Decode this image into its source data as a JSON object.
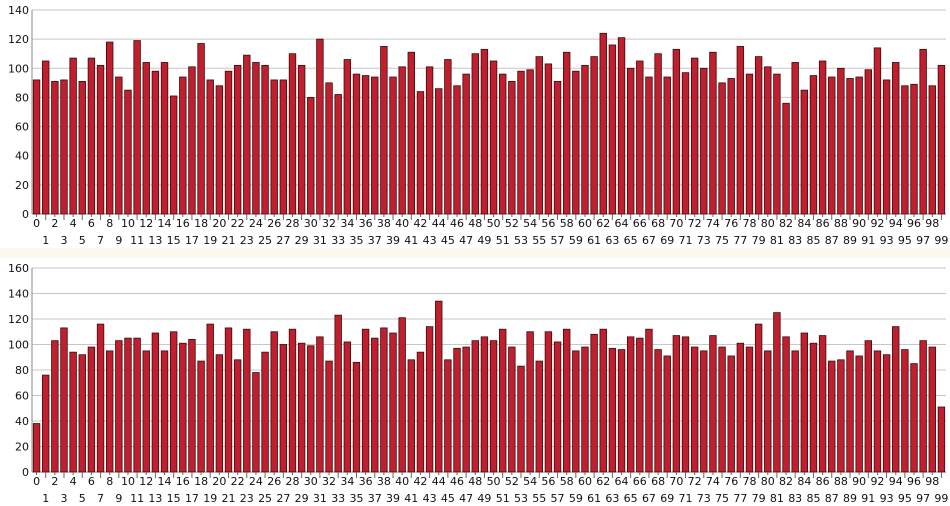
{
  "chart_data": [
    {
      "type": "bar",
      "title": "",
      "xlabel": "",
      "ylabel": "",
      "ylim": [
        0,
        140
      ],
      "yticks": [
        0,
        20,
        40,
        60,
        80,
        100,
        120,
        140
      ],
      "grid": true,
      "bar_color": "#c0202e",
      "bar_edge_color": "#3a0a0e",
      "categories": [
        "0",
        "1",
        "2",
        "3",
        "4",
        "5",
        "6",
        "7",
        "8",
        "9",
        "10",
        "11",
        "12",
        "13",
        "14",
        "15",
        "16",
        "17",
        "18",
        "19",
        "20",
        "21",
        "22",
        "23",
        "24",
        "25",
        "26",
        "27",
        "28",
        "29",
        "30",
        "31",
        "32",
        "33",
        "34",
        "35",
        "36",
        "37",
        "38",
        "39",
        "40",
        "41",
        "42",
        "43",
        "44",
        "45",
        "46",
        "47",
        "48",
        "49",
        "50",
        "51",
        "52",
        "53",
        "54",
        "55",
        "56",
        "57",
        "58",
        "59",
        "60",
        "61",
        "62",
        "63",
        "64",
        "65",
        "66",
        "67",
        "68",
        "69",
        "70",
        "71",
        "72",
        "73",
        "74",
        "75",
        "76",
        "77",
        "78",
        "79",
        "80",
        "81",
        "82",
        "83",
        "84",
        "85",
        "86",
        "87",
        "88",
        "89",
        "90",
        "91",
        "92",
        "93",
        "94",
        "95",
        "96",
        "97",
        "98",
        "99"
      ],
      "values": [
        92,
        105,
        91,
        92,
        107,
        91,
        107,
        102,
        118,
        94,
        85,
        119,
        104,
        98,
        104,
        81,
        94,
        101,
        117,
        92,
        88,
        98,
        102,
        109,
        104,
        102,
        92,
        92,
        110,
        102,
        80,
        120,
        90,
        82,
        106,
        96,
        95,
        94,
        115,
        94,
        101,
        111,
        84,
        101,
        86,
        106,
        88,
        96,
        110,
        113,
        105,
        96,
        91,
        98,
        99,
        108,
        103,
        91,
        111,
        98,
        102,
        108,
        124,
        116,
        121,
        100,
        105,
        94,
        110,
        94,
        113,
        97,
        107,
        100,
        111,
        90,
        93,
        115,
        96,
        108,
        101,
        96,
        76,
        104,
        85,
        95,
        105,
        94,
        100,
        93,
        94,
        99,
        114,
        92,
        104,
        88,
        89,
        113,
        88,
        102
      ]
    },
    {
      "type": "bar",
      "title": "",
      "xlabel": "",
      "ylabel": "",
      "ylim": [
        0,
        160
      ],
      "yticks": [
        0,
        20,
        40,
        60,
        80,
        100,
        120,
        140,
        160
      ],
      "grid": true,
      "bar_color": "#c0202e",
      "bar_edge_color": "#3a0a0e",
      "categories": [
        "0",
        "1",
        "2",
        "3",
        "4",
        "5",
        "6",
        "7",
        "8",
        "9",
        "10",
        "11",
        "12",
        "13",
        "14",
        "15",
        "16",
        "17",
        "18",
        "19",
        "20",
        "21",
        "22",
        "23",
        "24",
        "25",
        "26",
        "27",
        "28",
        "29",
        "30",
        "31",
        "32",
        "33",
        "34",
        "35",
        "36",
        "37",
        "38",
        "39",
        "40",
        "41",
        "42",
        "43",
        "44",
        "45",
        "46",
        "47",
        "48",
        "49",
        "50",
        "51",
        "52",
        "53",
        "54",
        "55",
        "56",
        "57",
        "58",
        "59",
        "60",
        "61",
        "62",
        "63",
        "64",
        "65",
        "66",
        "67",
        "68",
        "69",
        "70",
        "71",
        "72",
        "73",
        "74",
        "75",
        "76",
        "77",
        "78",
        "79",
        "80",
        "81",
        "82",
        "83",
        "84",
        "85",
        "86",
        "87",
        "88",
        "89",
        "90",
        "91",
        "92",
        "93",
        "94",
        "95",
        "96",
        "97",
        "98",
        "99"
      ],
      "values": [
        38,
        76,
        103,
        113,
        94,
        92,
        98,
        116,
        95,
        103,
        105,
        105,
        95,
        109,
        95,
        110,
        101,
        104,
        87,
        116,
        92,
        113,
        88,
        112,
        78,
        94,
        110,
        100,
        112,
        101,
        99,
        106,
        87,
        123,
        102,
        86,
        112,
        105,
        113,
        109,
        121,
        88,
        94,
        114,
        134,
        88,
        97,
        98,
        103,
        106,
        103,
        112,
        98,
        83,
        110,
        87,
        110,
        102,
        112,
        95,
        98,
        108,
        112,
        97,
        96,
        106,
        105,
        112,
        96,
        91,
        107,
        106,
        98,
        95,
        107,
        98,
        91,
        101,
        98,
        116,
        95,
        125,
        106,
        95,
        109,
        101,
        107,
        87,
        88,
        95,
        91,
        103,
        95,
        92,
        114,
        96,
        85,
        103,
        98,
        51
      ]
    }
  ]
}
